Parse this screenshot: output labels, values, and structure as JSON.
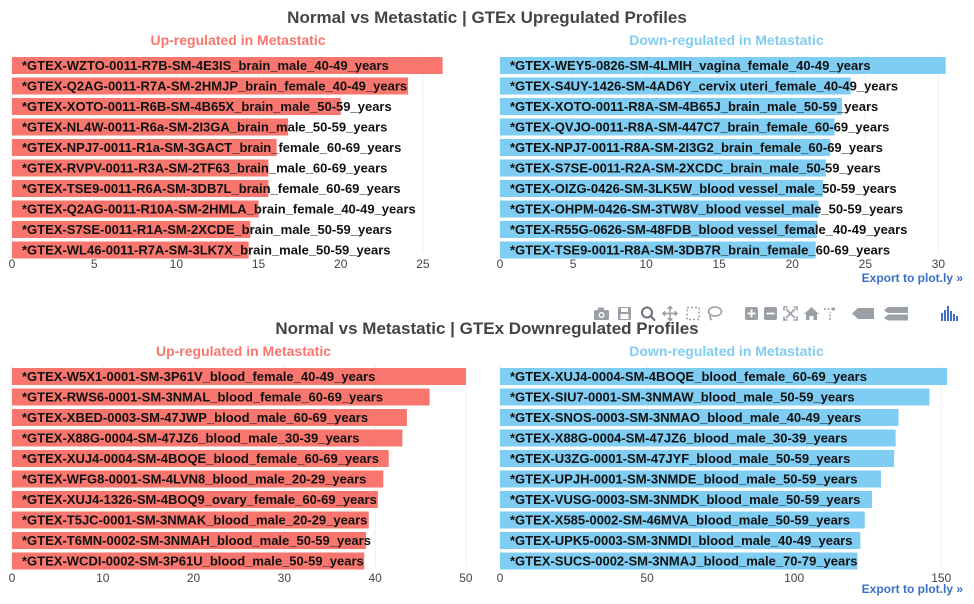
{
  "export_link": "Export to plot.ly »",
  "modebar": {
    "icons": [
      "camera-icon",
      "save-icon",
      "zoom-icon",
      "pan-icon",
      "box-select-icon",
      "lasso-icon",
      "zoom-in-icon",
      "zoom-out-icon",
      "autoscale-icon",
      "reset-axes-icon",
      "spike-lines-icon",
      "hover-closest-icon",
      "hover-compare-icon",
      "plotly-logo-icon"
    ]
  },
  "colors": {
    "up": "#f8766d",
    "down": "#7fcdf3",
    "title": "#444444",
    "text": "#111111",
    "tick": "#444444",
    "link": "#3a6fc4"
  },
  "chart_data": [
    {
      "type": "bar",
      "orientation": "horizontal",
      "title": "Normal vs Metastatic | GTEx Upregulated Profiles",
      "panels": [
        {
          "subtitle": "Up-regulated in Metastatic",
          "color": "#f8766d",
          "xlim": [
            0,
            27.5
          ],
          "ticks": [
            0,
            5,
            10,
            15,
            20,
            25
          ],
          "categories": [
            "*GTEX-WZTO-0011-R7B-SM-4E3IS_brain_male_40-49_years",
            "*GTEX-Q2AG-0011-R7A-SM-2HMJP_brain_female_40-49_years",
            "*GTEX-XOTO-0011-R6B-SM-4B65X_brain_male_50-59_years",
            "*GTEX-NL4W-0011-R6a-SM-2I3GA_brain_male_50-59_years",
            "*GTEX-NPJ7-0011-R1a-SM-3GACT_brain_female_60-69_years",
            "*GTEX-RVPV-0011-R3A-SM-2TF63_brain_male_60-69_years",
            "*GTEX-TSE9-0011-R6A-SM-3DB7L_brain_female_60-69_years",
            "*GTEX-Q2AG-0011-R10A-SM-2HMLA_brain_female_40-49_years",
            "*GTEX-S7SE-0011-R1A-SM-2XCDE_brain_male_50-59_years",
            "*GTEX-WL46-0011-R7A-SM-3LK7X_brain_male_50-59_years"
          ],
          "values": [
            26.2,
            24.1,
            20.0,
            16.8,
            16.1,
            15.6,
            15.6,
            15.0,
            14.5,
            14.4
          ]
        },
        {
          "subtitle": "Down-regulated in Metastatic",
          "color": "#7fcdf3",
          "xlim": [
            0,
            31
          ],
          "ticks": [
            0,
            5,
            10,
            15,
            20,
            25,
            30
          ],
          "categories": [
            "*GTEX-WEY5-0826-SM-4LMIH_vagina_female_40-49_years",
            "*GTEX-S4UY-1426-SM-4AD6Y_cervix uteri_female_40-49_years",
            "*GTEX-XOTO-0011-R8A-SM-4B65J_brain_male_50-59_years",
            "*GTEX-QVJO-0011-R8A-SM-447C7_brain_female_60-69_years",
            "*GTEX-NPJ7-0011-R8A-SM-2I3G2_brain_female_60-69_years",
            "*GTEX-S7SE-0011-R2A-SM-2XCDC_brain_male_50-59_years",
            "*GTEX-OIZG-0426-SM-3LK5W_blood vessel_male_50-59_years",
            "*GTEX-OHPM-0426-SM-3TW8V_blood vessel_male_50-59_years",
            "*GTEX-R55G-0626-SM-48FDB_blood vessel_female_40-49_years",
            "*GTEX-TSE9-0011-R8A-SM-3DB7R_brain_female_60-69_years"
          ],
          "values": [
            30.5,
            24.0,
            23.4,
            22.9,
            22.6,
            22.3,
            22.1,
            21.8,
            21.7,
            21.6
          ]
        }
      ]
    },
    {
      "type": "bar",
      "orientation": "horizontal",
      "title": "Normal vs Metastatic | GTEx Downregulated Profiles",
      "panels": [
        {
          "subtitle": "Up-regulated in Metastatic",
          "color": "#f8766d",
          "xlim": [
            0,
            51
          ],
          "ticks": [
            0,
            10,
            20,
            30,
            40,
            50
          ],
          "categories": [
            "*GTEX-W5X1-0001-SM-3P61V_blood_female_40-49_years",
            "*GTEX-RWS6-0001-SM-3NMAL_blood_female_60-69_years",
            "*GTEX-XBED-0003-SM-47JWP_blood_male_60-69_years",
            "*GTEX-X88G-0004-SM-47JZ6_blood_male_30-39_years",
            "*GTEX-XUJ4-0004-SM-4BOQE_blood_female_60-69_years",
            "*GTEX-WFG8-0001-SM-4LVN8_blood_male_20-29_years",
            "*GTEX-XUJ4-1326-SM-4BOQ9_ovary_female_60-69_years",
            "*GTEX-T5JC-0001-SM-3NMAK_blood_male_20-29_years",
            "*GTEX-T6MN-0002-SM-3NMAH_blood_male_50-59_years",
            "*GTEX-WCDI-0002-SM-3P61U_blood_male_50-59_years"
          ],
          "values": [
            50.0,
            46.0,
            43.5,
            43.0,
            41.5,
            40.9,
            40.3,
            39.3,
            39.0,
            38.8
          ]
        },
        {
          "subtitle": "Down-regulated in Metastatic",
          "color": "#7fcdf3",
          "xlim": [
            0,
            154
          ],
          "ticks": [
            0,
            50,
            100,
            150
          ],
          "categories": [
            "*GTEX-XUJ4-0004-SM-4BOQE_blood_female_60-69_years",
            "*GTEX-SIU7-0001-SM-3NMAW_blood_male_50-59_years",
            "*GTEX-SNOS-0003-SM-3NMAO_blood_male_40-49_years",
            "*GTEX-X88G-0004-SM-47JZ6_blood_male_30-39_years",
            "*GTEX-U3ZG-0001-SM-47JYF_blood_male_50-59_years",
            "*GTEX-UPJH-0001-SM-3NMDE_blood_male_50-59_years",
            "*GTEX-VUSG-0003-SM-3NMDK_blood_male_50-59_years",
            "*GTEX-X585-0002-SM-46MVA_blood_male_50-59_years",
            "*GTEX-UPK5-0003-SM-3NMDI_blood_male_40-49_years",
            "*GTEX-SUCS-0002-SM-3NMAJ_blood_male_70-79_years"
          ],
          "values": [
            152.0,
            146.0,
            135.5,
            134.5,
            134.0,
            129.5,
            126.5,
            124.0,
            122.5,
            121.5
          ]
        }
      ]
    }
  ]
}
